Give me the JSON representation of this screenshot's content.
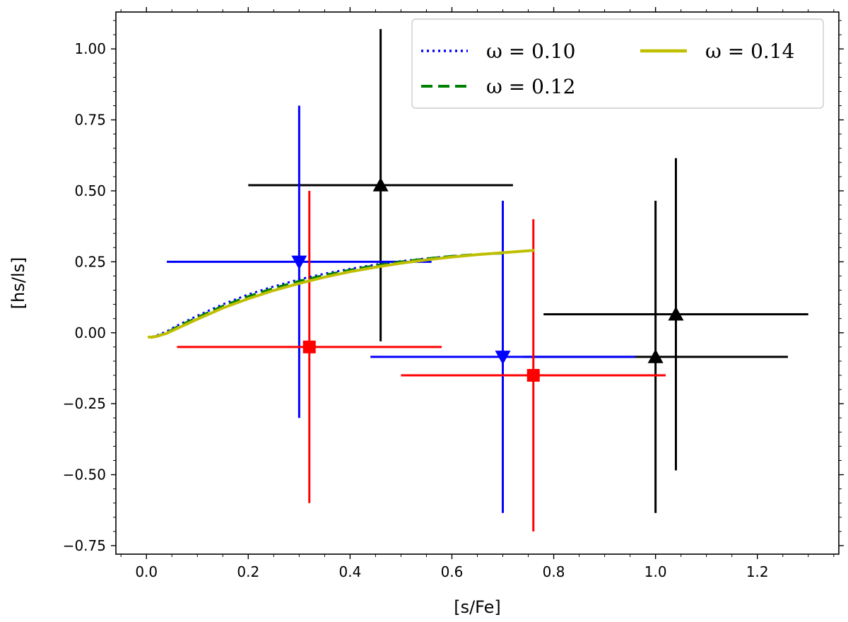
{
  "chart_data": {
    "type": "scatter",
    "xlabel": "[s/Fe]",
    "ylabel": "[hs/ls]",
    "xlim": [
      -0.06,
      1.36
    ],
    "ylim": [
      -0.78,
      1.13
    ],
    "xticks": [
      0.0,
      0.2,
      0.4,
      0.6,
      0.8,
      1.0,
      1.2
    ],
    "xtick_labels": [
      "0.0",
      "0.2",
      "0.4",
      "0.6",
      "0.8",
      "1.0",
      "1.2"
    ],
    "yticks": [
      -0.75,
      -0.5,
      -0.25,
      0.0,
      0.25,
      0.5,
      0.75,
      1.0
    ],
    "ytick_labels": [
      "−0.75",
      "−0.50",
      "−0.25",
      "0.00",
      "0.25",
      "0.50",
      "0.75",
      "1.00"
    ],
    "grid": false,
    "legend_position": "top-right",
    "model_series": [
      {
        "name": "ω = 0.10",
        "color": "#0000ff",
        "style": "dotted",
        "x": [
          0.01,
          0.02,
          0.04,
          0.06,
          0.1,
          0.15,
          0.2,
          0.25,
          0.3,
          0.35,
          0.4,
          0.45,
          0.5,
          0.55,
          0.6,
          0.65
        ],
        "y": [
          -0.015,
          -0.01,
          0.005,
          0.025,
          0.06,
          0.1,
          0.135,
          0.163,
          0.188,
          0.208,
          0.225,
          0.24,
          0.252,
          0.262,
          0.27,
          0.275
        ]
      },
      {
        "name": "ω = 0.12",
        "color": "#008000",
        "style": "dashed",
        "x": [
          0.01,
          0.02,
          0.04,
          0.06,
          0.1,
          0.15,
          0.2,
          0.25,
          0.3,
          0.35,
          0.4,
          0.45,
          0.5,
          0.55,
          0.6,
          0.65,
          0.7
        ],
        "y": [
          -0.015,
          -0.012,
          0.0,
          0.02,
          0.054,
          0.094,
          0.128,
          0.157,
          0.182,
          0.203,
          0.221,
          0.237,
          0.25,
          0.261,
          0.27,
          0.276,
          0.28
        ]
      },
      {
        "name": "ω = 0.14",
        "color": "#bfbf00",
        "style": "solid",
        "x": [
          0.005,
          0.01,
          0.02,
          0.04,
          0.06,
          0.1,
          0.15,
          0.2,
          0.25,
          0.3,
          0.35,
          0.4,
          0.45,
          0.5,
          0.55,
          0.6,
          0.65,
          0.7,
          0.76
        ],
        "y": [
          -0.015,
          -0.016,
          -0.013,
          -0.002,
          0.015,
          0.048,
          0.087,
          0.12,
          0.149,
          0.174,
          0.196,
          0.215,
          0.231,
          0.245,
          0.257,
          0.267,
          0.275,
          0.282,
          0.29
        ]
      }
    ],
    "observations": [
      {
        "x": 0.46,
        "y": 0.52,
        "xerr_low": 0.26,
        "xerr_high": 0.26,
        "yerr_low": 0.55,
        "yerr_high": 0.55,
        "color": "#000000",
        "marker": "triangle-up"
      },
      {
        "x": 1.0,
        "y": -0.085,
        "xerr_low": 0.26,
        "xerr_high": 0.26,
        "yerr_low": 0.55,
        "yerr_high": 0.55,
        "color": "#000000",
        "marker": "triangle-up"
      },
      {
        "x": 1.04,
        "y": 0.065,
        "xerr_low": 0.26,
        "xerr_high": 0.26,
        "yerr_low": 0.55,
        "yerr_high": 0.55,
        "color": "#000000",
        "marker": "triangle-up"
      },
      {
        "x": 0.3,
        "y": 0.25,
        "xerr_low": 0.26,
        "xerr_high": 0.26,
        "yerr_low": 0.55,
        "yerr_high": 0.55,
        "color": "#0000ff",
        "marker": "triangle-down"
      },
      {
        "x": 0.7,
        "y": -0.085,
        "xerr_low": 0.26,
        "xerr_high": 0.26,
        "yerr_low": 0.55,
        "yerr_high": 0.55,
        "color": "#0000ff",
        "marker": "triangle-down"
      },
      {
        "x": 0.32,
        "y": -0.05,
        "xerr_low": 0.26,
        "xerr_high": 0.26,
        "yerr_low": 0.55,
        "yerr_high": 0.55,
        "color": "#ff0000",
        "marker": "square"
      },
      {
        "x": 0.76,
        "y": -0.15,
        "xerr_low": 0.26,
        "xerr_high": 0.26,
        "yerr_low": 0.55,
        "yerr_high": 0.55,
        "color": "#ff0000",
        "marker": "square"
      }
    ]
  }
}
